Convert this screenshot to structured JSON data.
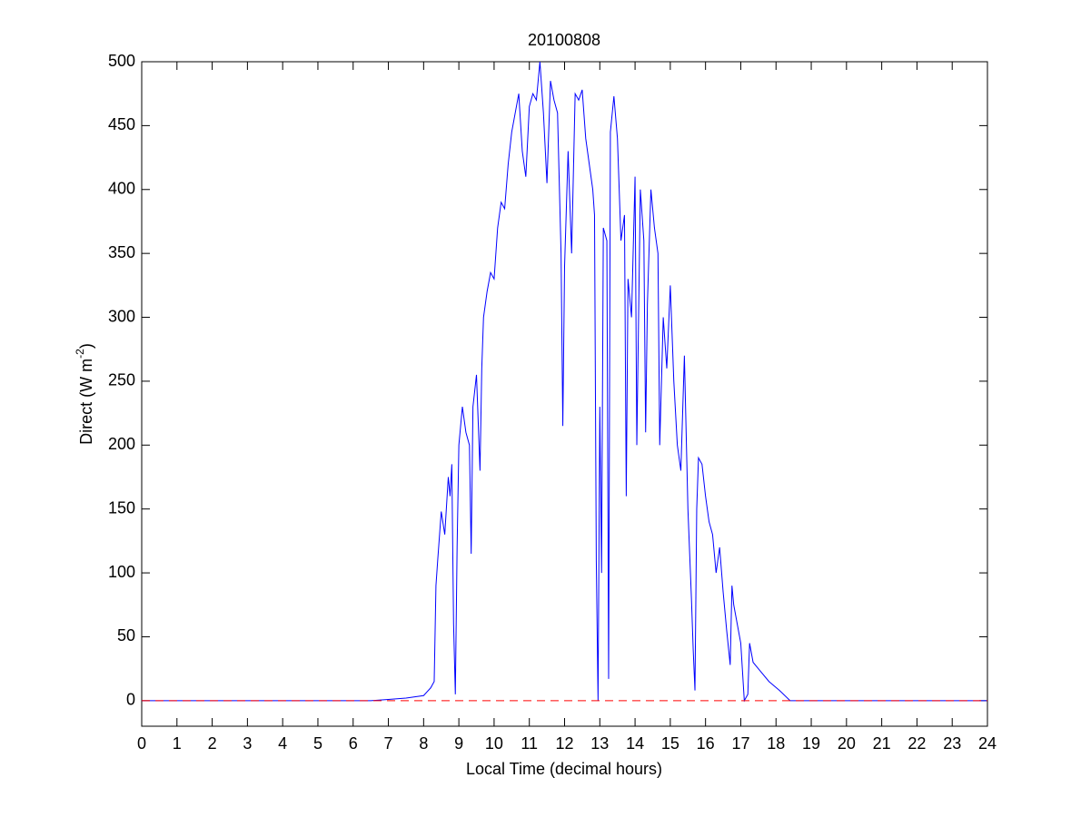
{
  "chart_data": {
    "type": "line",
    "title": "20100808",
    "xlabel": "Local Time (decimal hours)",
    "ylabel": {
      "text": "Direct (W m",
      "superscript": "-2",
      "suffix": ")"
    },
    "xlim": [
      0,
      24
    ],
    "xticks": [
      0,
      1,
      2,
      3,
      4,
      5,
      6,
      7,
      8,
      9,
      10,
      11,
      12,
      13,
      14,
      15,
      16,
      17,
      18,
      19,
      20,
      21,
      22,
      23,
      24
    ],
    "ylim": [
      -20,
      500
    ],
    "yticks": [
      0,
      50,
      100,
      150,
      200,
      250,
      300,
      350,
      400,
      450,
      500
    ],
    "grid": false,
    "reference_line": {
      "y": 0,
      "color": "#ff0000",
      "style": "dashed"
    },
    "series": [
      {
        "color": "#0000ff",
        "x": [
          0,
          6.5,
          7,
          7.5,
          8,
          8.2,
          8.3,
          8.35,
          8.4,
          8.5,
          8.6,
          8.7,
          8.75,
          8.8,
          8.85,
          8.9,
          8.95,
          9.0,
          9.1,
          9.2,
          9.3,
          9.35,
          9.4,
          9.5,
          9.6,
          9.65,
          9.7,
          9.8,
          9.9,
          10.0,
          10.1,
          10.2,
          10.3,
          10.4,
          10.5,
          10.6,
          10.7,
          10.8,
          10.9,
          11.0,
          11.1,
          11.2,
          11.3,
          11.4,
          11.5,
          11.6,
          11.7,
          11.8,
          11.9,
          11.95,
          12.0,
          12.1,
          12.2,
          12.3,
          12.4,
          12.5,
          12.6,
          12.7,
          12.8,
          12.85,
          12.9,
          12.95,
          13.0,
          13.05,
          13.1,
          13.2,
          13.25,
          13.3,
          13.4,
          13.5,
          13.6,
          13.7,
          13.75,
          13.8,
          13.9,
          14.0,
          14.05,
          14.15,
          14.25,
          14.3,
          14.35,
          14.45,
          14.55,
          14.65,
          14.7,
          14.8,
          14.9,
          15.0,
          15.1,
          15.2,
          15.3,
          15.4,
          15.5,
          15.6,
          15.65,
          15.7,
          15.75,
          15.8,
          15.9,
          16.0,
          16.1,
          16.2,
          16.3,
          16.4,
          16.5,
          16.6,
          16.7,
          16.75,
          16.8,
          16.9,
          17.0,
          17.1,
          17.2,
          17.25,
          17.35,
          17.5,
          17.8,
          18.1,
          18.4,
          24
        ],
        "values": [
          0,
          0,
          1,
          2,
          4,
          10,
          15,
          90,
          110,
          148,
          130,
          175,
          160,
          185,
          60,
          5,
          120,
          200,
          230,
          210,
          200,
          115,
          230,
          255,
          180,
          260,
          300,
          320,
          335,
          330,
          370,
          390,
          385,
          420,
          445,
          460,
          475,
          430,
          410,
          465,
          475,
          470,
          500,
          460,
          405,
          485,
          470,
          460,
          350,
          215,
          340,
          430,
          350,
          475,
          470,
          478,
          440,
          420,
          400,
          380,
          110,
          0,
          230,
          100,
          370,
          360,
          17,
          445,
          473,
          440,
          360,
          380,
          160,
          330,
          300,
          410,
          200,
          400,
          360,
          210,
          310,
          400,
          370,
          350,
          200,
          300,
          260,
          325,
          250,
          200,
          180,
          270,
          150,
          80,
          40,
          8,
          150,
          190,
          185,
          160,
          140,
          130,
          100,
          120,
          85,
          55,
          28,
          90,
          75,
          60,
          45,
          0,
          5,
          45,
          30,
          25,
          15,
          8,
          0,
          0
        ]
      }
    ]
  }
}
